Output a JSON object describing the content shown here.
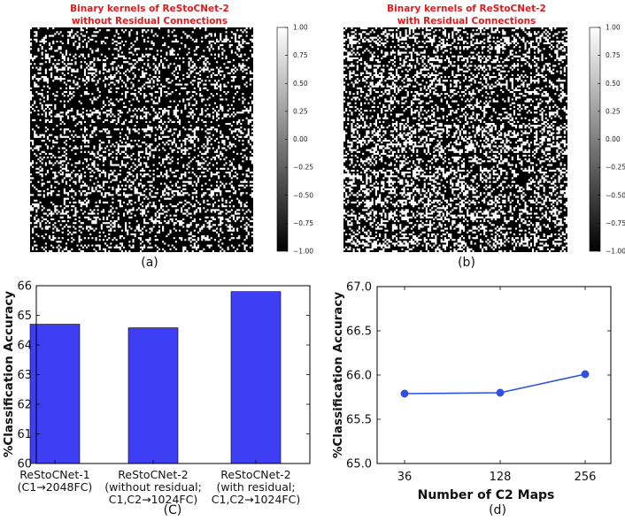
{
  "chart_data": [
    {
      "panel": "(a)",
      "type": "heatmap",
      "title_lines": [
        "Binary kernels of ReStoCNet-2",
        "without Residual Connections"
      ],
      "colormap": "gray",
      "vmin": -1.0,
      "vmax": 1.0,
      "colorbar_ticks": [
        "1.00",
        "0.75",
        "0.50",
        "0.25",
        "0.00",
        "−0.25",
        "−0.50",
        "−0.75",
        "−1.00"
      ],
      "white_fraction": 0.26
    },
    {
      "panel": "(b)",
      "type": "heatmap",
      "title_lines": [
        "Binary kernels of ReStoCNet-2",
        "with Residual Connections"
      ],
      "colormap": "gray",
      "vmin": -1.0,
      "vmax": 1.0,
      "colorbar_ticks": [
        "1.00",
        "0.75",
        "0.50",
        "0.25",
        "0.00",
        "−0.25",
        "−0.50",
        "−0.75",
        "−1.00"
      ],
      "white_fraction": 0.36
    },
    {
      "panel": "(C)",
      "type": "bar",
      "categories": [
        [
          "ReStoCNet-1",
          "(C1→2048FC)"
        ],
        [
          "ReStoCNet-2",
          "(without residual;",
          "C1,C2→1024FC)"
        ],
        [
          "ReStoCNet-2",
          "(with residual;",
          "C1,C2→1024FC)"
        ]
      ],
      "values": [
        64.7,
        64.58,
        65.8
      ],
      "ylabel": "%Classification Accuracy",
      "xlabel": "",
      "ylim": [
        60,
        66
      ],
      "yticks": [
        60,
        61,
        62,
        63,
        64,
        65,
        66
      ],
      "color": "#3e3ef5"
    },
    {
      "panel": "(d)",
      "type": "line",
      "x": [
        36,
        128,
        256
      ],
      "x_tick_labels": [
        "36",
        "128",
        "256"
      ],
      "y": [
        65.79,
        65.8,
        66.01
      ],
      "ylabel": "%Classification Accuracy",
      "xlabel": "Number of C2 Maps",
      "ylim": [
        65.0,
        67.0
      ],
      "yticks": [
        "65.0",
        "65.5",
        "66.0",
        "66.5",
        "67.0"
      ],
      "color": "#2f4fe0"
    }
  ]
}
